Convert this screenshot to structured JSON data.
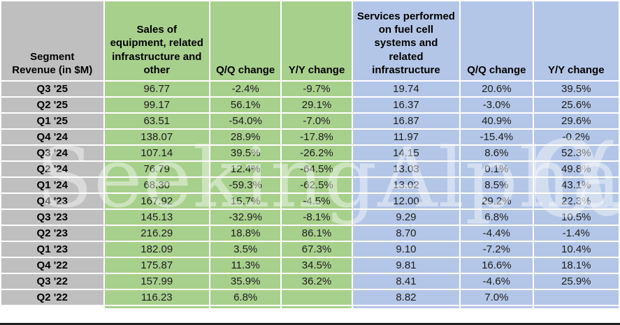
{
  "colors": {
    "equipment_group": "#a8d08d",
    "services_group": "#b4c6e7",
    "label_column": "#bfbfbf"
  },
  "watermark": {
    "text": "SeekingAlpha",
    "alpha_symbol": "α"
  },
  "chart_data": {
    "type": "table",
    "title": "Segment Revenue (in $M)",
    "columns": [
      "Segment Revenue (in $M)",
      "Sales of equipment, related infrastructure and other",
      "Q/Q change",
      "Y/Y change",
      "Services performed on fuel cell systems and related infrastructure",
      "Q/Q change",
      "Y/Y change"
    ],
    "rows": [
      [
        "Q3 '25",
        "96.77",
        "-2.4%",
        "-9.7%",
        "19.74",
        "20.6%",
        "39.5%"
      ],
      [
        "Q2 '25",
        "99.17",
        "56.1%",
        "29.1%",
        "16.37",
        "-3.0%",
        "25.6%"
      ],
      [
        "Q1 '25",
        "63.51",
        "-54.0%",
        "-7.0%",
        "16.87",
        "40.9%",
        "29.6%"
      ],
      [
        "Q4 '24",
        "138.07",
        "28.9%",
        "-17.8%",
        "11.97",
        "-15.4%",
        "-0.2%"
      ],
      [
        "Q3 '24",
        "107.14",
        "39.5%",
        "-26.2%",
        "14.15",
        "8.6%",
        "52.3%"
      ],
      [
        "Q2 '24",
        "76.79",
        "12.4%",
        "-64.5%",
        "13.03",
        "0.1%",
        "49.8%"
      ],
      [
        "Q1 '24",
        "68.30",
        "-59.3%",
        "-62.5%",
        "13.02",
        "8.5%",
        "43.1%"
      ],
      [
        "Q4 '23",
        "167.92",
        "15.7%",
        "-4.5%",
        "12.00",
        "29.2%",
        "22.3%"
      ],
      [
        "Q3 '23",
        "145.13",
        "-32.9%",
        "-8.1%",
        "9.29",
        "6.8%",
        "10.5%"
      ],
      [
        "Q2 '23",
        "216.29",
        "18.8%",
        "86.1%",
        "8.70",
        "-4.4%",
        "-1.4%"
      ],
      [
        "Q1 '23",
        "182.09",
        "3.5%",
        "67.3%",
        "9.10",
        "-7.2%",
        "10.4%"
      ],
      [
        "Q4 '22",
        "175.87",
        "11.3%",
        "34.5%",
        "9.81",
        "16.6%",
        "18.1%"
      ],
      [
        "Q3 '22",
        "157.99",
        "35.9%",
        "36.2%",
        "8.41",
        "-4.6%",
        "25.9%"
      ],
      [
        "Q2 '22",
        "116.23",
        "6.8%",
        "",
        "8.82",
        "7.0%",
        ""
      ]
    ]
  }
}
